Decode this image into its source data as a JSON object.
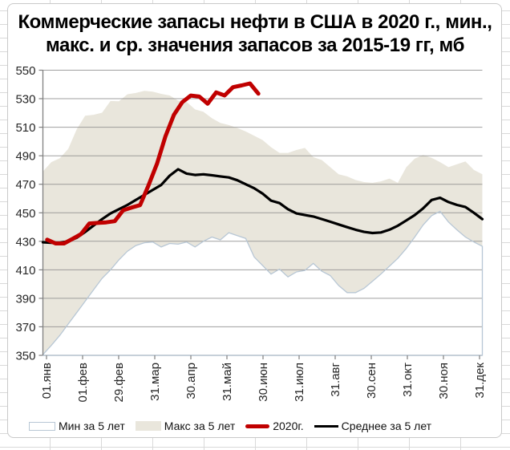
{
  "app": {
    "kind": "spreadsheet-embedded-chart"
  },
  "title": {
    "line1": "Коммерческие запасы нефти в США в 2020 г., мин.,",
    "line2": "макс. и ср. значения запасов за 2015-19 гг, мб"
  },
  "legend": {
    "items": [
      {
        "label": "Мин за 5 лет",
        "swatch": "outlined-area"
      },
      {
        "label": "Макс за 5 лет",
        "swatch": "filled-area"
      },
      {
        "label": "2020г.",
        "swatch": "thick-red-line"
      },
      {
        "label": "Среднее за 5 лет",
        "swatch": "black-line"
      }
    ]
  },
  "colors": {
    "red_2020": "#C00000",
    "avg_black": "#000000",
    "max_fill": "#E9E6DC",
    "min_fill": "#FFFFFF",
    "min_stroke": "#B8C7D5",
    "gridline": "#8F8F8F",
    "axis": "#7F7F7F",
    "text": "#262626",
    "frame_border": "#C9C9C9",
    "sheet_gridline": "#D9D9D9"
  },
  "chart_data": {
    "type": "line",
    "title": "Коммерческие запасы нефти в США в 2020 г., мин., макс. и ср. значения запасов за 2015-19 гг, мб",
    "xlabel": "",
    "ylabel": "",
    "ylim": [
      350,
      550
    ],
    "y_step": 20,
    "grid": "horizontal",
    "legend_position": "bottom",
    "x_unit": "weeks",
    "x_weeks_span": 52,
    "x_tick_labels": [
      "01.янв",
      "01.фев",
      "29.фев",
      "31.мар",
      "30.апр",
      "31.май",
      "30.июн",
      "31.июл",
      "31.авг",
      "30.сен",
      "31.окт",
      "30.ноя",
      "31.дек"
    ],
    "series": [
      {
        "name": "Мин за 5 лет",
        "role": "min-band",
        "values": [
          350.5,
          357,
          364,
          372,
          380,
          388,
          396,
          404,
          410,
          417,
          423,
          427,
          429,
          429.5,
          426,
          428.5,
          428,
          429.5,
          426,
          430,
          433,
          431,
          436,
          434,
          432,
          419,
          413,
          407,
          410.5,
          405,
          408.5,
          409.5,
          414.5,
          409,
          406,
          399,
          394,
          394,
          397,
          402,
          407,
          412.5,
          418,
          425,
          433,
          441.5,
          448,
          451,
          443.5,
          438,
          433,
          429.5,
          426.5
        ]
      },
      {
        "name": "Макс за 5 лет",
        "role": "max-band",
        "values": [
          479,
          485.5,
          488.3,
          494.8,
          508.6,
          518.1,
          518.7,
          520.2,
          528.4,
          528.2,
          533.1,
          534,
          535.5,
          535,
          533.4,
          532.3,
          528.7,
          527.8,
          522.5,
          520.8,
          516.3,
          513,
          511.5,
          509.5,
          507,
          504,
          501,
          496,
          492,
          492,
          494,
          495.5,
          489,
          487,
          482,
          477,
          475.5,
          473,
          471.5,
          471,
          472,
          474,
          471,
          482,
          488,
          490.5,
          488.5,
          485.5,
          482,
          484,
          486,
          480,
          477
        ]
      },
      {
        "name": "Среднее за 5 лет",
        "role": "average-line",
        "values": [
          429.3,
          429,
          429,
          430,
          432.5,
          436.5,
          441,
          445.5,
          449.5,
          452.5,
          455.5,
          459,
          462.5,
          466,
          469.5,
          476,
          480.5,
          477.5,
          476.5,
          477,
          476.3,
          475.5,
          474.8,
          472.8,
          470,
          467.2,
          463.4,
          458.5,
          456.8,
          452.5,
          449.5,
          448.4,
          447.4,
          445.6,
          443.7,
          441.8,
          439.9,
          438.1,
          436.6,
          435.8,
          436.2,
          438.1,
          440.9,
          444.6,
          448.4,
          453.1,
          459,
          460.5,
          457.5,
          455.5,
          454,
          450,
          445.5
        ]
      },
      {
        "name": "2020г.",
        "role": "current-year-line",
        "start_week": 0.5,
        "values": [
          431.1,
          428.5,
          428.5,
          431.7,
          435.0,
          442.5,
          442.9,
          443.3,
          444.1,
          451.8,
          453.7,
          455.4,
          469.2,
          484.4,
          503.6,
          518.6,
          527.6,
          532.2,
          531.5,
          526.5,
          534.4,
          532.3,
          538.1,
          539.3,
          540.7,
          533.5
        ]
      }
    ]
  }
}
